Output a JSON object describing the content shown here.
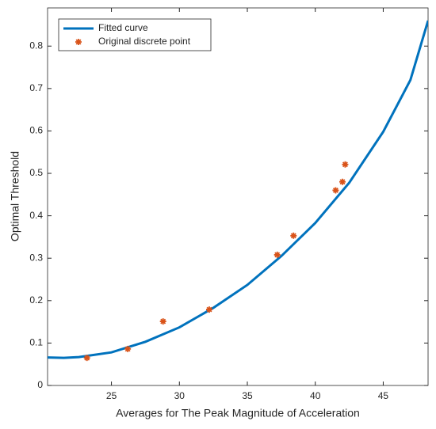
{
  "chart_data": {
    "type": "line",
    "xlabel": "Averages for The Peak Magnitude of Acceleration",
    "ylabel": "Optimal Threshold",
    "xlim": [
      20.3,
      48.3
    ],
    "ylim": [
      0,
      0.89
    ],
    "xticks": [
      25,
      30,
      35,
      40,
      45
    ],
    "yticks": [
      0,
      0.1,
      0.2,
      0.3,
      0.4,
      0.5,
      0.6,
      0.7,
      0.8
    ],
    "legend": "top-left",
    "series": [
      {
        "name": "Fitted curve",
        "type": "line",
        "color": "#0072bd",
        "x": [
          20.3,
          21.5,
          22.6,
          25,
          27.5,
          30,
          32.5,
          35,
          37.5,
          40,
          42.5,
          45,
          47,
          48.3
        ],
        "values": [
          0.066,
          0.065,
          0.067,
          0.078,
          0.103,
          0.137,
          0.183,
          0.237,
          0.305,
          0.383,
          0.478,
          0.598,
          0.72,
          0.86
        ]
      },
      {
        "name": "Original discrete point",
        "type": "scatter",
        "color": "#d95319",
        "x": [
          23.2,
          26.2,
          28.8,
          32.2,
          37.2,
          38.4,
          41.5,
          42,
          42.2
        ],
        "values": [
          0.065,
          0.086,
          0.151,
          0.179,
          0.308,
          0.353,
          0.46,
          0.48,
          0.521
        ]
      }
    ]
  }
}
